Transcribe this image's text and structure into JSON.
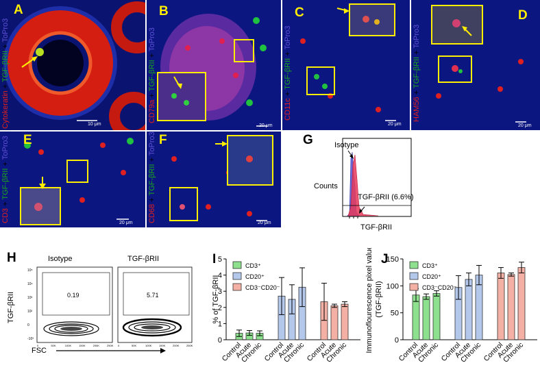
{
  "panels": {
    "A": {
      "letter": "A",
      "m1": "Cytokeratin",
      "sep1": " + ",
      "m2": "TGF-βRII",
      "sep2": " + ",
      "m3": "ToPro3",
      "scale": "10 μm"
    },
    "B": {
      "letter": "B",
      "m1": "CD79a",
      "sep1": " + ",
      "m2": "TGF-βRII",
      "sep2": " + ",
      "m3": "ToPro3",
      "scale": "20 μm"
    },
    "C": {
      "letter": "C",
      "m1": "CD11c",
      "sep1": " + ",
      "m2": "TGF-βRII",
      "sep2": " + ",
      "m3": "ToPro3",
      "scale": "20 μm"
    },
    "D": {
      "letter": "D",
      "m1": "HAM56",
      "sep1": " + ",
      "m2": "TGF-βRII",
      "sep2": " + ",
      "m3": "ToPro3",
      "scale": "20 μm"
    },
    "E": {
      "letter": "E",
      "m1": "CD3",
      "sep1": " + ",
      "m2": "TGF-βRII",
      "sep2": " + ",
      "m3": "ToPro3",
      "scale": "20 μm"
    },
    "F": {
      "letter": "F",
      "m1": "CD68",
      "sep1": " + ",
      "m2": "TGF-βRII",
      "sep2": " + ",
      "m3": "ToPro3",
      "scale": "20 μm"
    }
  },
  "panel_g": {
    "letter": "G",
    "ylabel": "Counts",
    "xlabel": "TGF-βRII",
    "isotype_label": "Isotype",
    "gate_label": "TGF-βRII (6.6%)"
  },
  "panel_h": {
    "letter": "H",
    "ylabel": "TGF-βRII",
    "xlabel": "FSC",
    "plots": [
      {
        "title": "Isotype",
        "value": "0.19"
      },
      {
        "title": "TGF-βRII",
        "value": "5.71"
      }
    ],
    "x_ticks": [
      "0",
      "50K",
      "100K",
      "150K",
      "200K",
      "250K"
    ],
    "y_ticks": [
      "10⁵",
      "10⁴",
      "10³",
      "10²",
      "0",
      "-10³"
    ]
  },
  "colors": {
    "green": "#8de08d",
    "blue": "#b4c8ec",
    "red": "#f4b0a4"
  },
  "chart_data": [
    {
      "type": "bar",
      "panel": "I",
      "ylabel": "% of TGF-βRII",
      "ylim": [
        0,
        5
      ],
      "yticks": [
        0,
        1,
        2,
        3,
        4,
        5
      ],
      "categories": [
        "Control",
        "Acute",
        "Chronic"
      ],
      "legend": "top-left",
      "series": [
        {
          "name": "CD3⁺",
          "values": [
            0.4,
            0.42,
            0.4
          ],
          "errors": [
            0.2,
            0.15,
            0.15
          ]
        },
        {
          "name": "CD20⁺",
          "values": [
            2.7,
            2.5,
            3.25
          ],
          "errors": [
            1.15,
            0.9,
            1.2
          ]
        },
        {
          "name": "CD3⁻CD20⁻",
          "values": [
            2.35,
            2.1,
            2.2
          ],
          "errors": [
            1.15,
            0.1,
            0.15
          ]
        }
      ]
    },
    {
      "type": "bar",
      "panel": "J",
      "ylabel": "Immunoflourescence pixel value (TGF-βRII)",
      "ylim": [
        0,
        150
      ],
      "yticks": [
        0,
        50,
        100,
        150
      ],
      "categories": [
        "Control",
        "Acute",
        "Chronic"
      ],
      "legend": "top-left",
      "series": [
        {
          "name": "CD3⁺",
          "values": [
            83,
            80,
            86
          ],
          "errors": [
            12,
            5,
            5
          ]
        },
        {
          "name": "CD20⁺",
          "values": [
            97,
            112,
            120
          ],
          "errors": [
            22,
            12,
            18
          ]
        },
        {
          "name": "CD3⁻CD20⁻",
          "values": [
            124,
            121,
            134
          ],
          "errors": [
            10,
            3,
            10
          ]
        }
      ]
    }
  ]
}
